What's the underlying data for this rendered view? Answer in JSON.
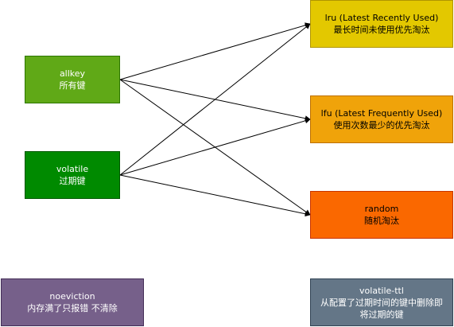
{
  "nodes": {
    "allkey": {
      "line1": "allkey",
      "line2": "所有键",
      "fill": "#60a917",
      "stroke": "#2d7600",
      "text_color": "#ffffff"
    },
    "volatile": {
      "line1": "volatile",
      "line2": "过期键",
      "fill": "#008a00",
      "stroke": "#005700",
      "text_color": "#ffffff"
    },
    "lru": {
      "line1": "lru (Latest Recently Used)",
      "line2": "最长时间未使用优先淘汰",
      "fill": "#e3c800",
      "stroke": "#b09500",
      "text_color": "#000000"
    },
    "lfu": {
      "line1": "lfu (Latest Frequently Used)",
      "line2": "使用次数最少的优先淘汰",
      "fill": "#f0a30a",
      "stroke": "#bd7000",
      "text_color": "#000000"
    },
    "random": {
      "line1": "random",
      "line2": "随机淘汰",
      "fill": "#fa6800",
      "stroke": "#c73500",
      "text_color": "#000000"
    },
    "noeviction": {
      "line1": "noeviction",
      "line2": "内存满了只报错 不清除",
      "fill": "#76608a",
      "stroke": "#432d57",
      "text_color": "#ffffff"
    },
    "volatile_ttl": {
      "line1": "volatile-ttl",
      "line2": "从配置了过期时间的键中删除即",
      "line3": "将过期的键",
      "fill": "#647687",
      "stroke": "#314354",
      "text_color": "#ffffff"
    }
  },
  "edges": [
    {
      "from": "allkey",
      "to": "lru"
    },
    {
      "from": "allkey",
      "to": "lfu"
    },
    {
      "from": "allkey",
      "to": "random"
    },
    {
      "from": "volatile",
      "to": "lru"
    },
    {
      "from": "volatile",
      "to": "lfu"
    },
    {
      "from": "volatile",
      "to": "random"
    }
  ],
  "edge_color": "#000000"
}
